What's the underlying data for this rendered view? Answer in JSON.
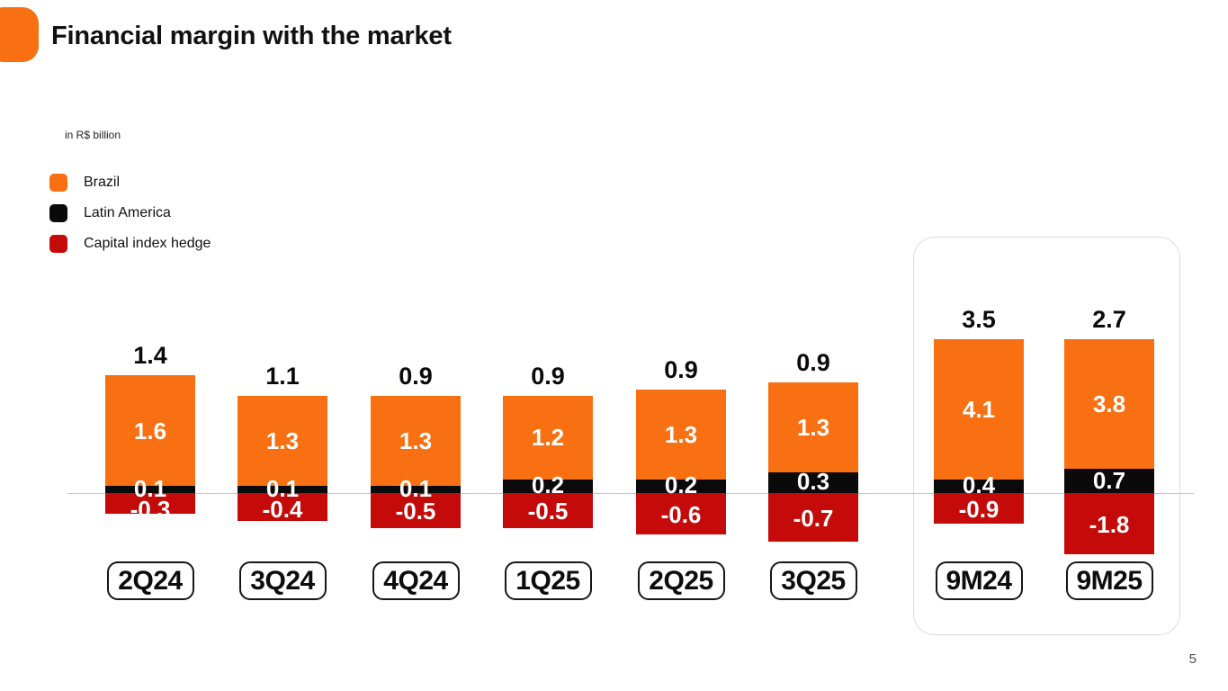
{
  "page": {
    "title": "Financial margin with the market",
    "unit_note": "in R$ billion",
    "page_number": "5"
  },
  "colors": {
    "orange": "#F97012",
    "black": "#0A0A0A",
    "dark_red": "#C50A0A",
    "axis_line": "#C8C8C8",
    "highlight_box_border": "#DDDDDD"
  },
  "legend": {
    "items": [
      {
        "label": "Brazil",
        "color": "#F97012"
      },
      {
        "label": "Latin America",
        "color": "#0A0A0A"
      },
      {
        "label": "Capital index hedge",
        "color": "#C50A0A"
      }
    ]
  },
  "chart_data": {
    "type": "bar",
    "stacked": true,
    "title": "Financial margin with the market",
    "unit": "R$ billion",
    "legend_position": "top-left",
    "grid": false,
    "categories": [
      "2Q24",
      "3Q24",
      "4Q24",
      "1Q25",
      "2Q25",
      "3Q25",
      "9M24",
      "9M25"
    ],
    "totals": [
      1.4,
      1.1,
      0.9,
      0.9,
      0.9,
      0.9,
      3.5,
      2.7
    ],
    "series": [
      {
        "name": "Brazil",
        "color": "#F97012",
        "values": [
          1.6,
          1.3,
          1.3,
          1.2,
          1.3,
          1.3,
          4.1,
          3.8
        ]
      },
      {
        "name": "Latin America",
        "color": "#0A0A0A",
        "values": [
          0.1,
          0.1,
          0.1,
          0.2,
          0.2,
          0.3,
          0.4,
          0.7
        ]
      },
      {
        "name": "Capital index hedge",
        "color": "#C50A0A",
        "values": [
          -0.3,
          -0.4,
          -0.5,
          -0.5,
          -0.6,
          -0.7,
          -0.9,
          -1.8
        ]
      }
    ],
    "highlighted_categories": [
      "9M24",
      "9M25"
    ]
  }
}
